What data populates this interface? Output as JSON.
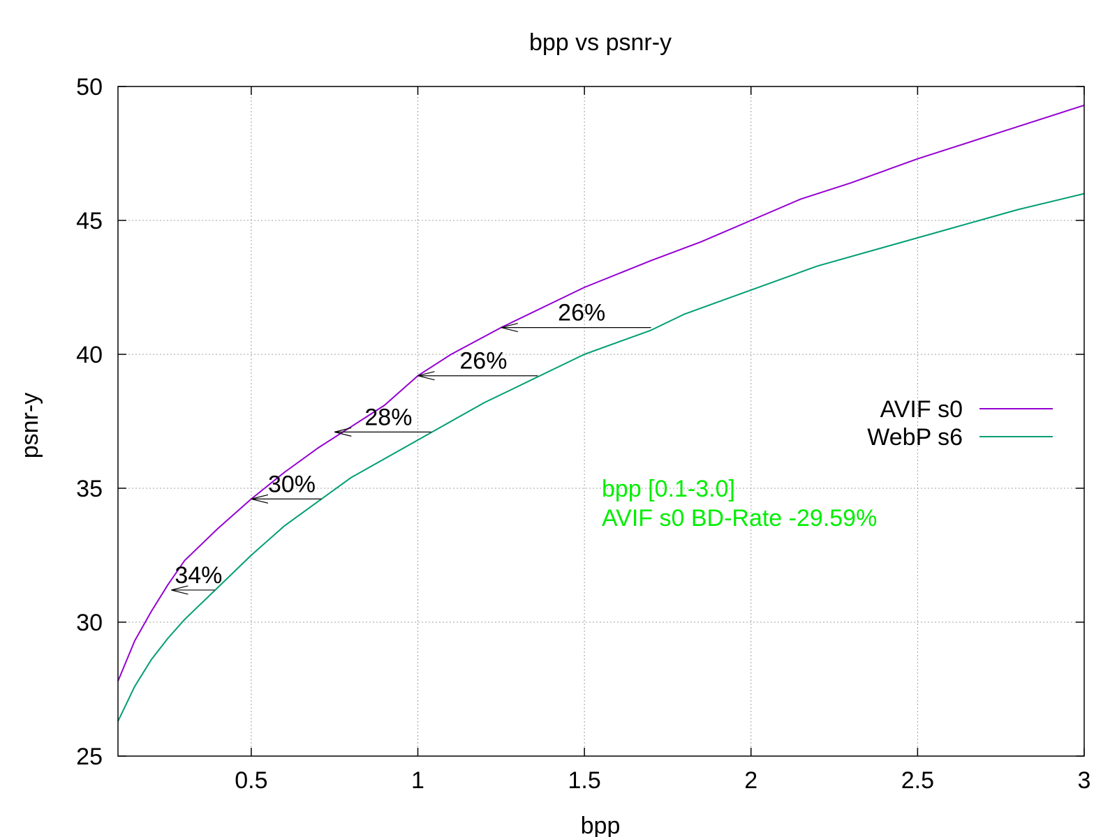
{
  "chart_data": {
    "type": "line",
    "title": "bpp vs psnr-y",
    "xlabel": "bpp",
    "ylabel": "psnr-y",
    "xlim": [
      0.1,
      3
    ],
    "ylim": [
      25,
      50
    ],
    "grid": true,
    "legend_position": "right",
    "x_ticks": [
      0.5,
      1,
      1.5,
      2,
      2.5,
      3
    ],
    "x_tick_labels": [
      "0.5",
      "1",
      "1.5",
      "2",
      "2.5",
      "3"
    ],
    "y_ticks": [
      25,
      30,
      35,
      40,
      45,
      50
    ],
    "y_tick_labels": [
      "25",
      "30",
      "35",
      "40",
      "45",
      "50"
    ],
    "series": [
      {
        "name": "AVIF s0",
        "color": "#9400d3",
        "x": [
          0.1,
          0.15,
          0.2,
          0.25,
          0.3,
          0.4,
          0.5,
          0.6,
          0.7,
          0.8,
          0.9,
          1.0,
          1.1,
          1.25,
          1.4,
          1.5,
          1.7,
          1.85,
          2.0,
          2.15,
          2.3,
          2.5,
          2.75,
          3.0
        ],
        "y": [
          27.8,
          29.3,
          30.4,
          31.4,
          32.3,
          33.5,
          34.6,
          35.6,
          36.5,
          37.3,
          38.1,
          39.2,
          40.0,
          41.0,
          41.9,
          42.5,
          43.5,
          44.2,
          45.0,
          45.8,
          46.4,
          47.3,
          48.3,
          49.3
        ]
      },
      {
        "name": "WebP s6",
        "color": "#009e73",
        "x": [
          0.1,
          0.15,
          0.2,
          0.25,
          0.3,
          0.4,
          0.5,
          0.6,
          0.7,
          0.8,
          0.9,
          1.0,
          1.1,
          1.2,
          1.3,
          1.4,
          1.5,
          1.7,
          1.8,
          2.0,
          2.2,
          2.4,
          2.6,
          2.8,
          3.0
        ],
        "y": [
          26.3,
          27.6,
          28.6,
          29.4,
          30.1,
          31.3,
          32.5,
          33.6,
          34.5,
          35.4,
          36.1,
          36.8,
          37.5,
          38.2,
          38.8,
          39.4,
          40.0,
          40.9,
          41.5,
          42.4,
          43.3,
          44.0,
          44.7,
          45.4,
          46.0
        ]
      }
    ],
    "annotations": [
      {
        "label": "34%",
        "y": 31.2,
        "x_from": 0.39,
        "x_to": 0.26
      },
      {
        "label": "30%",
        "y": 34.6,
        "x_from": 0.71,
        "x_to": 0.5
      },
      {
        "label": "28%",
        "y": 37.1,
        "x_from": 1.04,
        "x_to": 0.75
      },
      {
        "label": "26%",
        "y": 39.2,
        "x_from": 1.36,
        "x_to": 1.0
      },
      {
        "label": "26%",
        "y": 41.0,
        "x_from": 1.7,
        "x_to": 1.25
      }
    ],
    "info_text": {
      "color": "#00ee00",
      "lines": [
        "bpp [0.1-3.0]",
        "AVIF s0 BD-Rate -29.59%"
      ]
    }
  }
}
